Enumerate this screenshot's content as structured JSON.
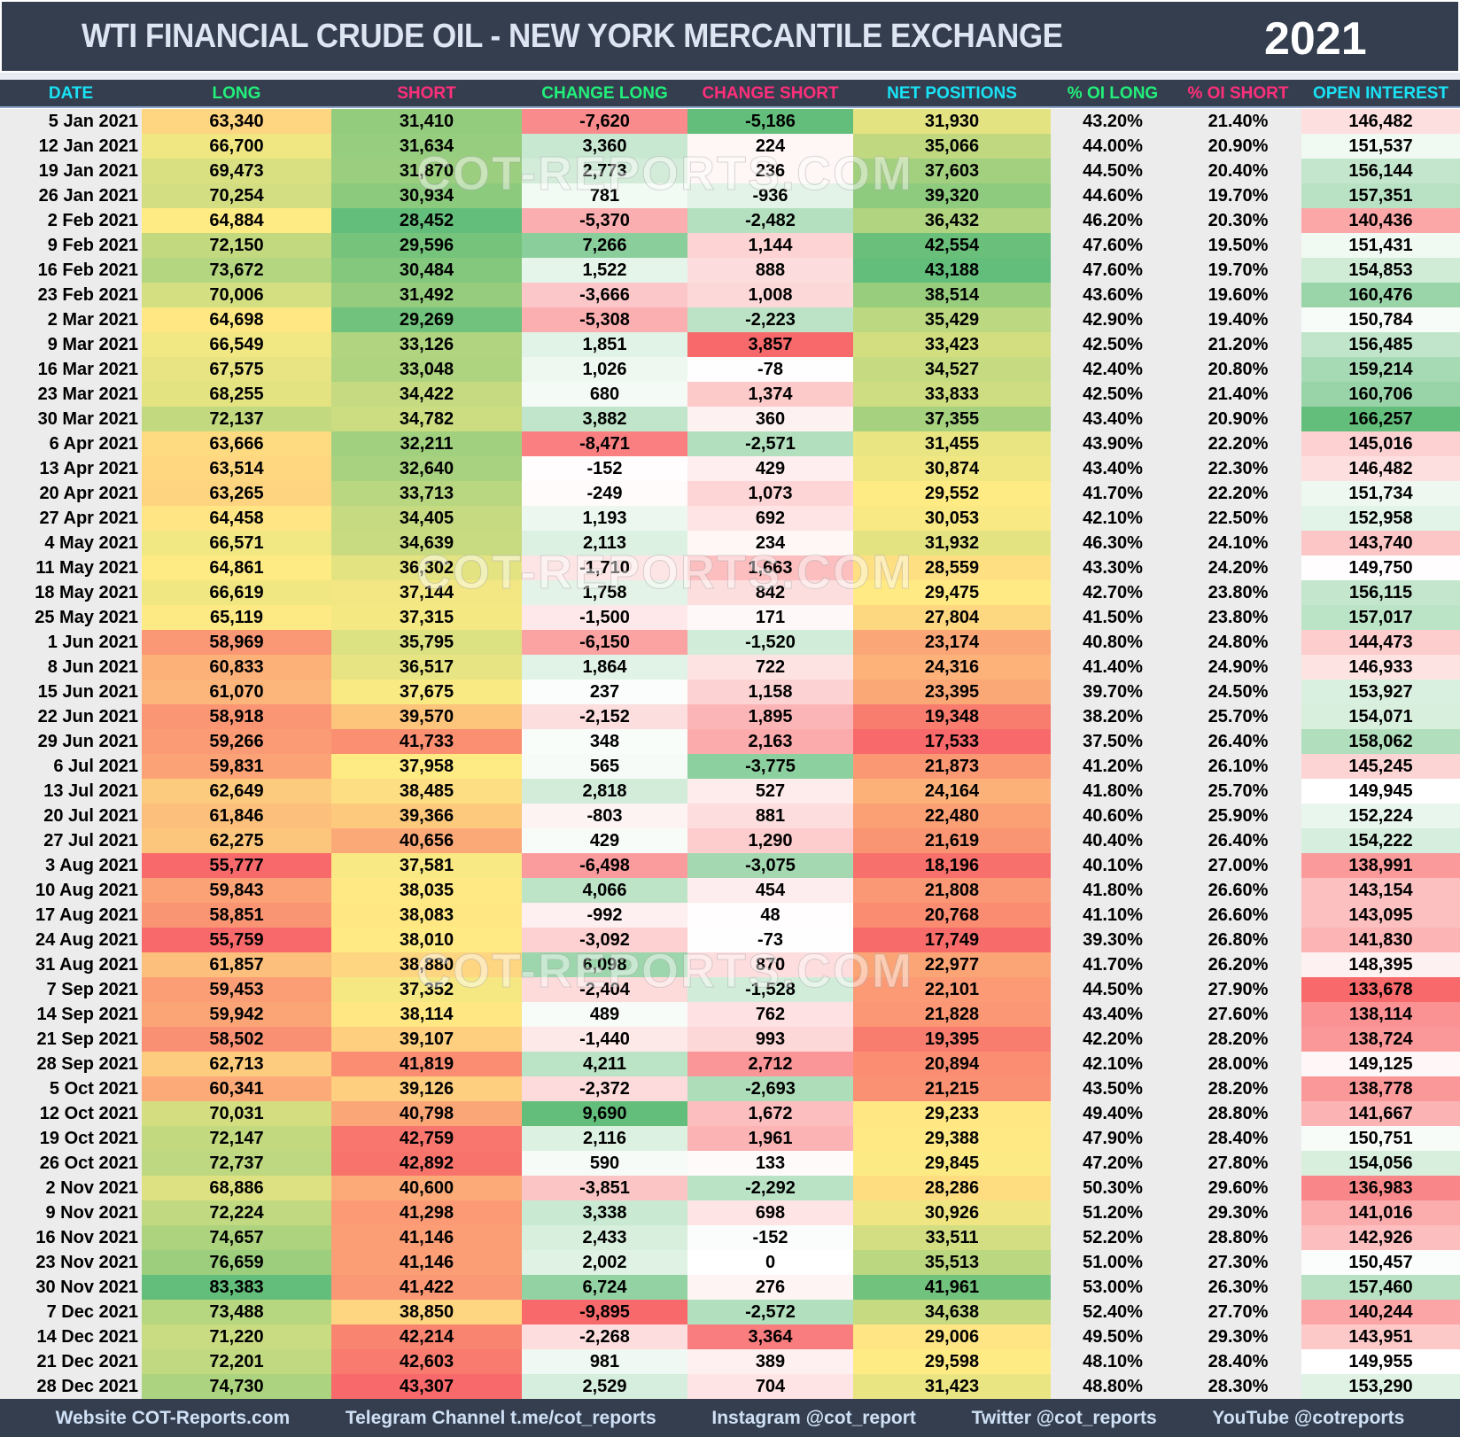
{
  "header": {
    "title": "WTI FINANCIAL CRUDE OIL - NEW YORK MERCANTILE EXCHANGE",
    "year": "2021"
  },
  "columns": [
    {
      "label": "DATE",
      "color": "#19e3f5"
    },
    {
      "label": "LONG",
      "color": "#22f07a"
    },
    {
      "label": "SHORT",
      "color": "#ff2f7a"
    },
    {
      "label": "CHANGE LONG",
      "color": "#22f07a"
    },
    {
      "label": "CHANGE SHORT",
      "color": "#ff2f7a"
    },
    {
      "label": "NET POSITIONS",
      "color": "#19e3f5"
    },
    {
      "label": "% OI LONG",
      "color": "#22f07a"
    },
    {
      "label": "% OI SHORT",
      "color": "#ff2f7a"
    },
    {
      "label": "OPEN INTEREST",
      "color": "#19e3f5"
    }
  ],
  "filter_icon": "filter-sort-icon",
  "watermark": "COT-REPORTS.COM",
  "scale_colors": {
    "low": "#f8696b",
    "mid": "#ffeb84",
    "high": "#63be7b",
    "neutral": "#ffffff"
  },
  "rows": [
    [
      "5 Jan 2021",
      "63,340",
      "31,410",
      "-7,620",
      "-5,186",
      "31,930",
      "43.20%",
      "21.40%",
      "146,482"
    ],
    [
      "12 Jan 2021",
      "66,700",
      "31,634",
      "3,360",
      "224",
      "35,066",
      "44.00%",
      "20.90%",
      "151,537"
    ],
    [
      "19 Jan 2021",
      "69,473",
      "31,870",
      "2,773",
      "236",
      "37,603",
      "44.50%",
      "20.40%",
      "156,144"
    ],
    [
      "26 Jan 2021",
      "70,254",
      "30,934",
      "781",
      "-936",
      "39,320",
      "44.60%",
      "19.70%",
      "157,351"
    ],
    [
      "2 Feb 2021",
      "64,884",
      "28,452",
      "-5,370",
      "-2,482",
      "36,432",
      "46.20%",
      "20.30%",
      "140,436"
    ],
    [
      "9 Feb 2021",
      "72,150",
      "29,596",
      "7,266",
      "1,144",
      "42,554",
      "47.60%",
      "19.50%",
      "151,431"
    ],
    [
      "16 Feb 2021",
      "73,672",
      "30,484",
      "1,522",
      "888",
      "43,188",
      "47.60%",
      "19.70%",
      "154,853"
    ],
    [
      "23 Feb 2021",
      "70,006",
      "31,492",
      "-3,666",
      "1,008",
      "38,514",
      "43.60%",
      "19.60%",
      "160,476"
    ],
    [
      "2 Mar 2021",
      "64,698",
      "29,269",
      "-5,308",
      "-2,223",
      "35,429",
      "42.90%",
      "19.40%",
      "150,784"
    ],
    [
      "9 Mar 2021",
      "66,549",
      "33,126",
      "1,851",
      "3,857",
      "33,423",
      "42.50%",
      "21.20%",
      "156,485"
    ],
    [
      "16 Mar 2021",
      "67,575",
      "33,048",
      "1,026",
      "-78",
      "34,527",
      "42.40%",
      "20.80%",
      "159,214"
    ],
    [
      "23 Mar 2021",
      "68,255",
      "34,422",
      "680",
      "1,374",
      "33,833",
      "42.50%",
      "21.40%",
      "160,706"
    ],
    [
      "30 Mar 2021",
      "72,137",
      "34,782",
      "3,882",
      "360",
      "37,355",
      "43.40%",
      "20.90%",
      "166,257"
    ],
    [
      "6 Apr 2021",
      "63,666",
      "32,211",
      "-8,471",
      "-2,571",
      "31,455",
      "43.90%",
      "22.20%",
      "145,016"
    ],
    [
      "13 Apr 2021",
      "63,514",
      "32,640",
      "-152",
      "429",
      "30,874",
      "43.40%",
      "22.30%",
      "146,482"
    ],
    [
      "20 Apr 2021",
      "63,265",
      "33,713",
      "-249",
      "1,073",
      "29,552",
      "41.70%",
      "22.20%",
      "151,734"
    ],
    [
      "27 Apr 2021",
      "64,458",
      "34,405",
      "1,193",
      "692",
      "30,053",
      "42.10%",
      "22.50%",
      "152,958"
    ],
    [
      "4 May 2021",
      "66,571",
      "34,639",
      "2,113",
      "234",
      "31,932",
      "46.30%",
      "24.10%",
      "143,740"
    ],
    [
      "11 May 2021",
      "64,861",
      "36,302",
      "-1,710",
      "1,663",
      "28,559",
      "43.30%",
      "24.20%",
      "149,750"
    ],
    [
      "18 May 2021",
      "66,619",
      "37,144",
      "1,758",
      "842",
      "29,475",
      "42.70%",
      "23.80%",
      "156,115"
    ],
    [
      "25 May 2021",
      "65,119",
      "37,315",
      "-1,500",
      "171",
      "27,804",
      "41.50%",
      "23.80%",
      "157,017"
    ],
    [
      "1 Jun 2021",
      "58,969",
      "35,795",
      "-6,150",
      "-1,520",
      "23,174",
      "40.80%",
      "24.80%",
      "144,473"
    ],
    [
      "8 Jun 2021",
      "60,833",
      "36,517",
      "1,864",
      "722",
      "24,316",
      "41.40%",
      "24.90%",
      "146,933"
    ],
    [
      "15 Jun 2021",
      "61,070",
      "37,675",
      "237",
      "1,158",
      "23,395",
      "39.70%",
      "24.50%",
      "153,927"
    ],
    [
      "22 Jun 2021",
      "58,918",
      "39,570",
      "-2,152",
      "1,895",
      "19,348",
      "38.20%",
      "25.70%",
      "154,071"
    ],
    [
      "29 Jun 2021",
      "59,266",
      "41,733",
      "348",
      "2,163",
      "17,533",
      "37.50%",
      "26.40%",
      "158,062"
    ],
    [
      "6 Jul 2021",
      "59,831",
      "37,958",
      "565",
      "-3,775",
      "21,873",
      "41.20%",
      "26.10%",
      "145,245"
    ],
    [
      "13 Jul 2021",
      "62,649",
      "38,485",
      "2,818",
      "527",
      "24,164",
      "41.80%",
      "25.70%",
      "149,945"
    ],
    [
      "20 Jul 2021",
      "61,846",
      "39,366",
      "-803",
      "881",
      "22,480",
      "40.60%",
      "25.90%",
      "152,224"
    ],
    [
      "27 Jul 2021",
      "62,275",
      "40,656",
      "429",
      "1,290",
      "21,619",
      "40.40%",
      "26.40%",
      "154,222"
    ],
    [
      "3 Aug 2021",
      "55,777",
      "37,581",
      "-6,498",
      "-3,075",
      "18,196",
      "40.10%",
      "27.00%",
      "138,991"
    ],
    [
      "10 Aug 2021",
      "59,843",
      "38,035",
      "4,066",
      "454",
      "21,808",
      "41.80%",
      "26.60%",
      "143,154"
    ],
    [
      "17 Aug 2021",
      "58,851",
      "38,083",
      "-992",
      "48",
      "20,768",
      "41.10%",
      "26.60%",
      "143,095"
    ],
    [
      "24 Aug 2021",
      "55,759",
      "38,010",
      "-3,092",
      "-73",
      "17,749",
      "39.30%",
      "26.80%",
      "141,830"
    ],
    [
      "31 Aug 2021",
      "61,857",
      "38,880",
      "6,098",
      "870",
      "22,977",
      "41.70%",
      "26.20%",
      "148,395"
    ],
    [
      "7 Sep 2021",
      "59,453",
      "37,352",
      "-2,404",
      "-1,528",
      "22,101",
      "44.50%",
      "27.90%",
      "133,678"
    ],
    [
      "14 Sep 2021",
      "59,942",
      "38,114",
      "489",
      "762",
      "21,828",
      "43.40%",
      "27.60%",
      "138,114"
    ],
    [
      "21 Sep 2021",
      "58,502",
      "39,107",
      "-1,440",
      "993",
      "19,395",
      "42.20%",
      "28.20%",
      "138,724"
    ],
    [
      "28 Sep 2021",
      "62,713",
      "41,819",
      "4,211",
      "2,712",
      "20,894",
      "42.10%",
      "28.00%",
      "149,125"
    ],
    [
      "5 Oct 2021",
      "60,341",
      "39,126",
      "-2,372",
      "-2,693",
      "21,215",
      "43.50%",
      "28.20%",
      "138,778"
    ],
    [
      "12 Oct 2021",
      "70,031",
      "40,798",
      "9,690",
      "1,672",
      "29,233",
      "49.40%",
      "28.80%",
      "141,667"
    ],
    [
      "19 Oct 2021",
      "72,147",
      "42,759",
      "2,116",
      "1,961",
      "29,388",
      "47.90%",
      "28.40%",
      "150,751"
    ],
    [
      "26 Oct 2021",
      "72,737",
      "42,892",
      "590",
      "133",
      "29,845",
      "47.20%",
      "27.80%",
      "154,056"
    ],
    [
      "2 Nov 2021",
      "68,886",
      "40,600",
      "-3,851",
      "-2,292",
      "28,286",
      "50.30%",
      "29.60%",
      "136,983"
    ],
    [
      "9 Nov 2021",
      "72,224",
      "41,298",
      "3,338",
      "698",
      "30,926",
      "51.20%",
      "29.30%",
      "141,016"
    ],
    [
      "16 Nov 2021",
      "74,657",
      "41,146",
      "2,433",
      "-152",
      "33,511",
      "52.20%",
      "28.80%",
      "142,926"
    ],
    [
      "23 Nov 2021",
      "76,659",
      "41,146",
      "2,002",
      "0",
      "35,513",
      "51.00%",
      "27.30%",
      "150,457"
    ],
    [
      "30 Nov 2021",
      "83,383",
      "41,422",
      "6,724",
      "276",
      "41,961",
      "53.00%",
      "26.30%",
      "157,460"
    ],
    [
      "7 Dec 2021",
      "73,488",
      "38,850",
      "-9,895",
      "-2,572",
      "34,638",
      "52.40%",
      "27.70%",
      "140,244"
    ],
    [
      "14 Dec 2021",
      "71,220",
      "42,214",
      "-2,268",
      "3,364",
      "29,006",
      "49.50%",
      "29.30%",
      "143,951"
    ],
    [
      "21 Dec 2021",
      "72,201",
      "42,603",
      "981",
      "389",
      "29,598",
      "48.10%",
      "28.40%",
      "149,955"
    ],
    [
      "28 Dec 2021",
      "74,730",
      "43,307",
      "2,529",
      "704",
      "31,423",
      "48.80%",
      "28.30%",
      "153,290"
    ]
  ],
  "footer": [
    "Website COT-Reports.com",
    "Telegram Channel t.me/cot_reports",
    "Instagram @cot_report",
    "Twitter @cot_reports",
    "YouTube @cotreports"
  ]
}
